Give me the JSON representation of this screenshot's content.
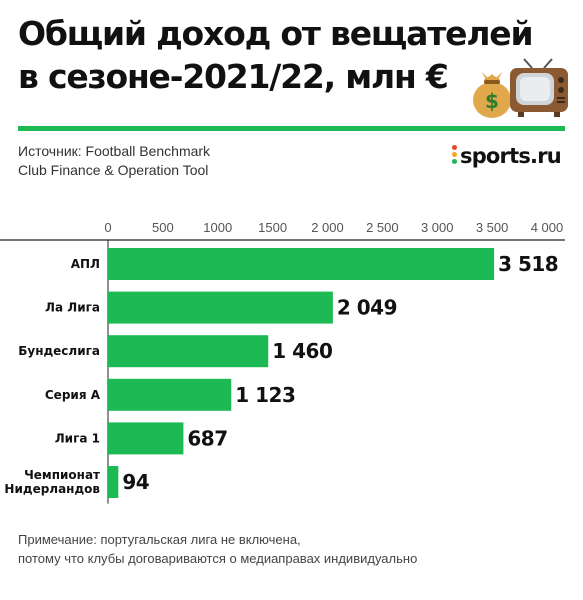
{
  "header": {
    "title_lines": [
      "Общий доход от вещателей",
      "в сезоне-2021/22, млн €"
    ],
    "emoji_icons": [
      "money-bag-icon",
      "tv-icon"
    ],
    "source_lines": [
      "Источник: Football Benchmark",
      "Club Finance & Operation Tool"
    ],
    "logo_text": "sports.ru"
  },
  "colors": {
    "accent": "#1db954",
    "text": "#111111",
    "axis": "#555555"
  },
  "chart_data": {
    "type": "bar",
    "orientation": "horizontal",
    "categories": [
      "АПЛ",
      "Ла Лига",
      "Бундеслига",
      "Серия А",
      "Лига 1",
      "Чемпионат Нидерландов"
    ],
    "category_label_lines": [
      [
        "АПЛ"
      ],
      [
        "Ла Лига"
      ],
      [
        "Бундеслига"
      ],
      [
        "Серия А"
      ],
      [
        "Лига 1"
      ],
      [
        "Чемпионат",
        "Нидерландов"
      ]
    ],
    "values": [
      3518,
      2049,
      1460,
      1123,
      687,
      94
    ],
    "value_labels": [
      "3 518",
      "2 049",
      "1 460",
      "1 123",
      "687",
      "94"
    ],
    "xlim": [
      0,
      4000
    ],
    "xticks": [
      0,
      500,
      1000,
      1500,
      2000,
      2500,
      3000,
      3500,
      4000
    ],
    "xtick_labels": [
      "0",
      "500",
      "1000",
      "1500",
      "2 000",
      "2 500",
      "3 000",
      "3 500",
      "4 000"
    ],
    "axis_position": "top",
    "grid": false,
    "bar_color": "#1db954"
  },
  "footer": {
    "note_lines": [
      "Примечание: португальская лига не включена,",
      "потому что клубы договариваются о медиаправах индивидуально"
    ]
  }
}
